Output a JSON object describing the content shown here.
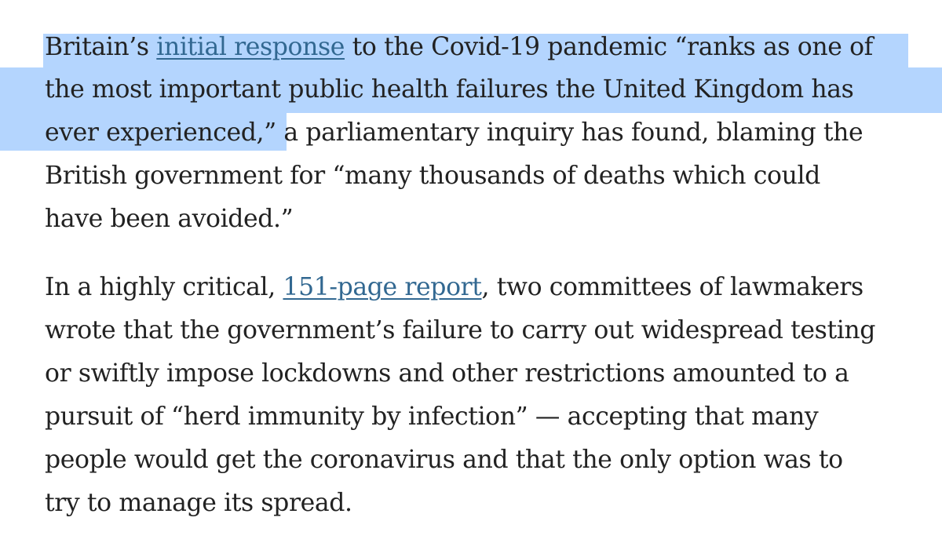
{
  "article": {
    "paragraph_1": {
      "line_1_pre": "Britain’s ",
      "line_1_link": "initial response",
      "line_1_post": " to the Covid-19 pandemic “ranks as one of",
      "line_2": "the most important public health failures the United Kingdom has",
      "line_3": "ever experienced,” a parliamentary inquiry has found, blaming the",
      "line_4": "British government for “many thousands of deaths which could",
      "line_5": "have been avoided.”"
    },
    "paragraph_2": {
      "line_1_pre": "In a highly critical, ",
      "line_1_link": "151-page report",
      "line_1_post": ", two committees of lawmakers",
      "line_2": "wrote that the government’s failure to carry out widespread testing",
      "line_3": "or swiftly impose lockdowns and other restrictions amounted to a",
      "line_4": "pursuit of “herd immunity by infection” — accepting that many",
      "line_5": "people would get the coronavirus and that the only option was to",
      "line_6": "try to manage its spread."
    }
  },
  "colors": {
    "text": "#222222",
    "link": "#326891",
    "selection": "#b4d5fe"
  }
}
